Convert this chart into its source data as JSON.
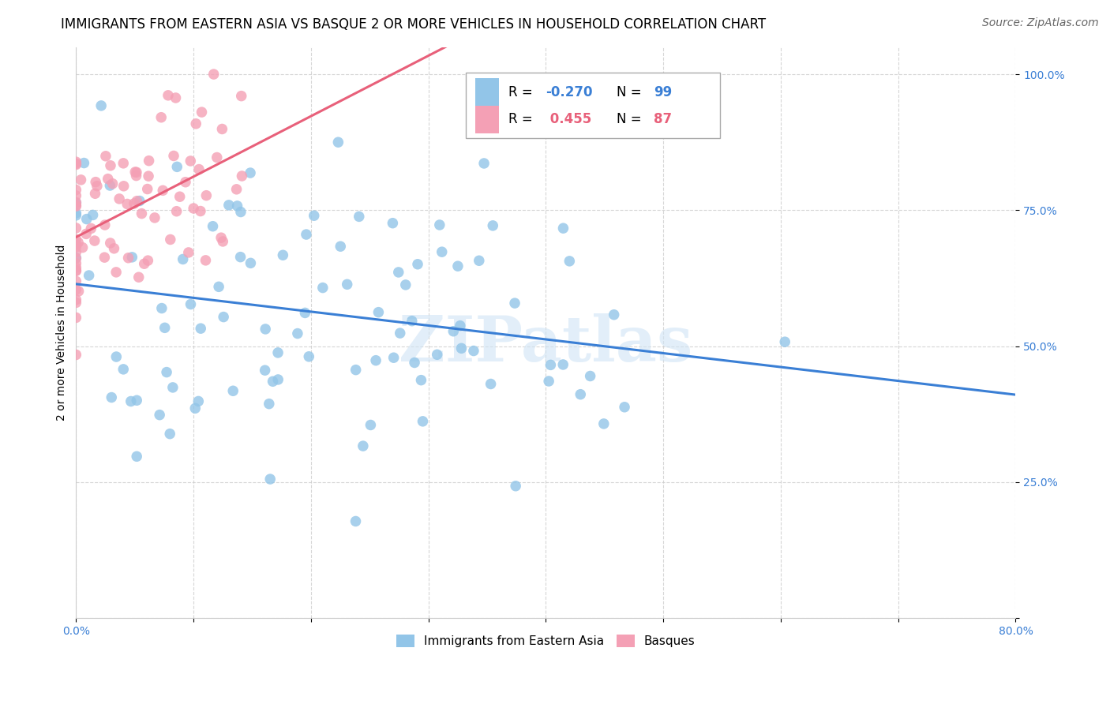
{
  "title": "IMMIGRANTS FROM EASTERN ASIA VS BASQUE 2 OR MORE VEHICLES IN HOUSEHOLD CORRELATION CHART",
  "source": "Source: ZipAtlas.com",
  "ylabel": "2 or more Vehicles in Household",
  "legend_label_blue": "Immigrants from Eastern Asia",
  "legend_label_pink": "Basques",
  "xmin": 0.0,
  "xmax": 0.8,
  "ymin": 0.0,
  "ymax": 1.05,
  "blue_R": -0.27,
  "blue_N": 99,
  "pink_R": 0.455,
  "pink_N": 87,
  "blue_color": "#92C5E8",
  "pink_color": "#F4A0B5",
  "blue_line_color": "#3A7FD5",
  "pink_line_color": "#E8607A",
  "watermark_color": "#D0E4F5",
  "title_fontsize": 12,
  "source_fontsize": 10,
  "axis_fontsize": 10,
  "tick_fontsize": 10,
  "legend_fontsize": 12
}
